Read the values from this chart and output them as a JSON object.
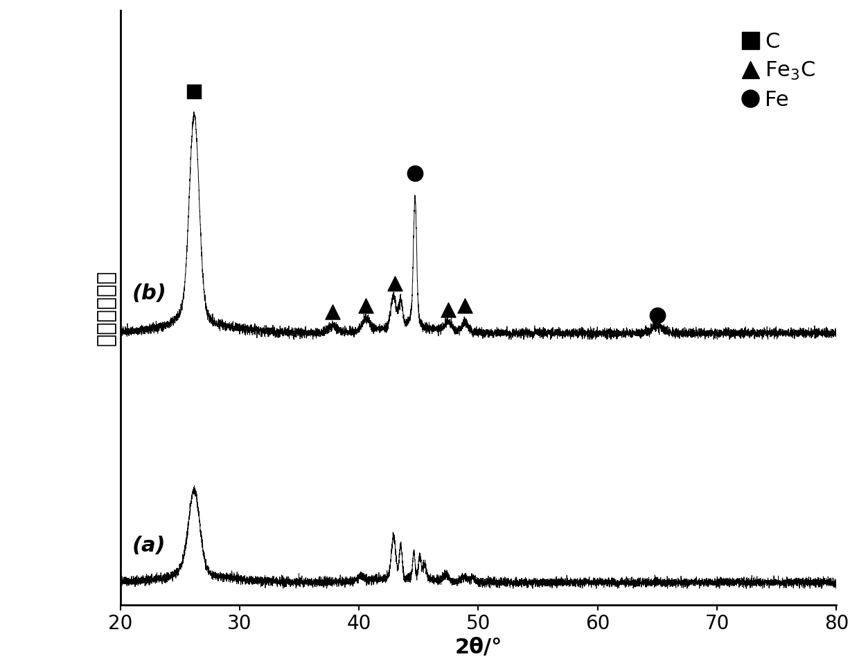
{
  "x_min": 20,
  "x_max": 80,
  "xlabel": "2θ/°",
  "ylabel": "相对衰射强度",
  "xlabel_fontsize": 22,
  "ylabel_fontsize": 22,
  "tick_fontsize": 20,
  "xticks": [
    20,
    30,
    40,
    50,
    60,
    70,
    80
  ],
  "background_color": "#ffffff",
  "line_color": "#000000",
  "label_a": "(a)",
  "label_b": "(b)"
}
